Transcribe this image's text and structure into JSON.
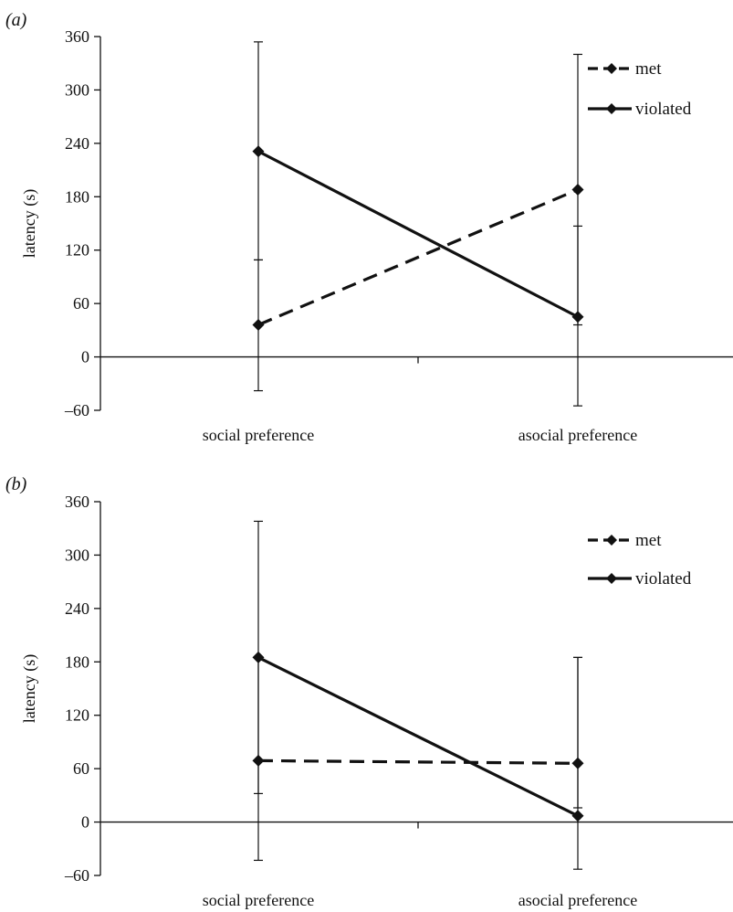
{
  "chart_data": [
    {
      "panel_label": "(a)",
      "type": "line",
      "title": "",
      "xlabel": "",
      "ylabel": "latency (s)",
      "ylim": [
        -60,
        360
      ],
      "yticks": [
        -60,
        0,
        60,
        120,
        180,
        240,
        300,
        360
      ],
      "ytick_labels": [
        "–60",
        "0",
        "60",
        "120",
        "180",
        "240",
        "300",
        "360"
      ],
      "categories": [
        "social preference",
        "asocial preference"
      ],
      "legend_position": "top-right",
      "grid": false,
      "series": [
        {
          "name": "met",
          "style": "dashed",
          "marker": "diamond",
          "values": [
            36,
            188
          ],
          "error_low": [
            -38,
            36
          ],
          "error_high": [
            109,
            147
          ]
        },
        {
          "name": "violated",
          "style": "solid",
          "marker": "diamond",
          "values": [
            231,
            45
          ],
          "error_low": [
            109,
            -55
          ],
          "error_high": [
            354,
            340
          ]
        }
      ]
    },
    {
      "panel_label": "(b)",
      "type": "line",
      "title": "",
      "xlabel": "",
      "ylabel": "latency (s)",
      "ylim": [
        -60,
        360
      ],
      "yticks": [
        -60,
        0,
        60,
        120,
        180,
        240,
        300,
        360
      ],
      "ytick_labels": [
        "–60",
        "0",
        "60",
        "120",
        "180",
        "240",
        "300",
        "360"
      ],
      "categories": [
        "social preference",
        "asocial preference"
      ],
      "legend_position": "top-right",
      "grid": false,
      "series": [
        {
          "name": "met",
          "style": "dashed",
          "marker": "diamond",
          "values": [
            69,
            66
          ],
          "error_low": [
            32,
            16
          ],
          "error_high": [
            184,
            185
          ]
        },
        {
          "name": "violated",
          "style": "solid",
          "marker": "diamond",
          "values": [
            185,
            7
          ],
          "error_low": [
            -43,
            -53
          ],
          "error_high": [
            338,
            185
          ]
        }
      ]
    }
  ]
}
